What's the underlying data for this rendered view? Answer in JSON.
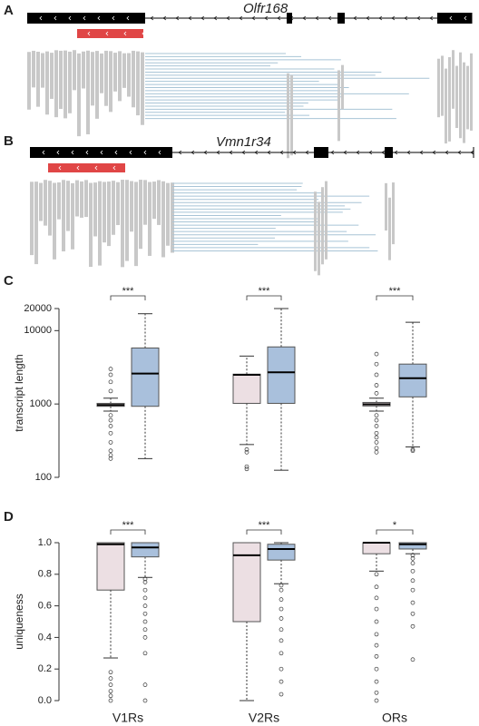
{
  "gene_tracks": [
    {
      "label": "A",
      "gene": "Olfr168"
    },
    {
      "label": "B",
      "gene": "Vmn1r34"
    }
  ],
  "chart_data": [
    {
      "type": "boxplot",
      "label": "C",
      "y_label": "transcript length",
      "log_y": true,
      "ylim": [
        100,
        20000
      ],
      "yticks": [
        100,
        1000,
        10000,
        20000
      ],
      "significance": [
        "***",
        "***",
        "***"
      ],
      "series": [
        {
          "color": "#ecdfe3",
          "boxes": [
            {
              "whislo": 800,
              "q1": 930,
              "med": 970,
              "q3": 1020,
              "whishi": 1200,
              "fliers": [
                180,
                200,
                230,
                300,
                400,
                500,
                600,
                700,
                1500,
                2000,
                2500,
                3000
              ]
            },
            {
              "whislo": 280,
              "q1": 1020,
              "med": 2500,
              "q3": 2550,
              "whishi": 4500,
              "fliers": [
                130,
                140,
                220,
                240
              ]
            },
            {
              "whislo": 800,
              "q1": 940,
              "med": 990,
              "q3": 1050,
              "whishi": 1200,
              "fliers": [
                220,
                250,
                300,
                350,
                400,
                500,
                600,
                700,
                1400,
                1800,
                2500,
                3500,
                4800
              ]
            }
          ]
        },
        {
          "color": "#a9c0dc",
          "boxes": [
            {
              "whislo": 180,
              "q1": 930,
              "med": 2600,
              "q3": 5800,
              "whishi": 17000,
              "fliers": []
            },
            {
              "whislo": 125,
              "q1": 1020,
              "med": 2700,
              "q3": 6000,
              "whishi": 20000,
              "fliers": []
            },
            {
              "whislo": 260,
              "q1": 1250,
              "med": 2250,
              "q3": 3500,
              "whishi": 13000,
              "fliers": [
                230,
                240
              ]
            }
          ]
        }
      ]
    },
    {
      "type": "boxplot",
      "label": "D",
      "y_label": "uniqueness",
      "log_y": false,
      "categories": [
        "V1Rs",
        "V2Rs",
        "ORs"
      ],
      "ylim": [
        0,
        1
      ],
      "yticks": [
        {
          "value": 0,
          "label": "0.0"
        },
        0.2,
        0.4,
        0.6,
        0.8,
        {
          "value": 1,
          "label": "1.0"
        }
      ],
      "significance": [
        "***",
        "***",
        "*"
      ],
      "series": [
        {
          "color": "#ecdfe3",
          "boxes": [
            {
              "whislo": 0.27,
              "q1": 0.7,
              "med": 0.99,
              "q3": 1.0,
              "whishi": 1.0,
              "fliers": [
                0.0,
                0.03,
                0.06,
                0.1,
                0.14,
                0.18
              ]
            },
            {
              "whislo": 0.0,
              "q1": 0.5,
              "med": 0.92,
              "q3": 1.0,
              "whishi": 1.0,
              "fliers": []
            },
            {
              "whislo": 0.82,
              "q1": 0.93,
              "med": 1.0,
              "q3": 1.0,
              "whishi": 1.0,
              "fliers": [
                0.0,
                0.05,
                0.12,
                0.2,
                0.28,
                0.35,
                0.42,
                0.5,
                0.58,
                0.65,
                0.72,
                0.8
              ]
            }
          ]
        },
        {
          "color": "#a9c0dc",
          "boxes": [
            {
              "whislo": 0.78,
              "q1": 0.91,
              "med": 0.97,
              "q3": 1.0,
              "whishi": 1.0,
              "fliers": [
                0.0,
                0.1,
                0.3,
                0.4,
                0.45,
                0.5,
                0.55,
                0.6,
                0.65,
                0.7,
                0.75,
                0.77
              ]
            },
            {
              "whislo": 0.74,
              "q1": 0.89,
              "med": 0.96,
              "q3": 0.99,
              "whishi": 1.0,
              "fliers": [
                0.04,
                0.12,
                0.2,
                0.3,
                0.38,
                0.45,
                0.52,
                0.58,
                0.64,
                0.7,
                0.73
              ]
            },
            {
              "whislo": 0.93,
              "q1": 0.96,
              "med": 0.99,
              "q3": 1.0,
              "whishi": 1.0,
              "fliers": [
                0.26,
                0.47,
                0.55,
                0.62,
                0.7,
                0.76,
                0.82,
                0.87,
                0.9,
                0.92
              ]
            }
          ]
        }
      ]
    }
  ]
}
